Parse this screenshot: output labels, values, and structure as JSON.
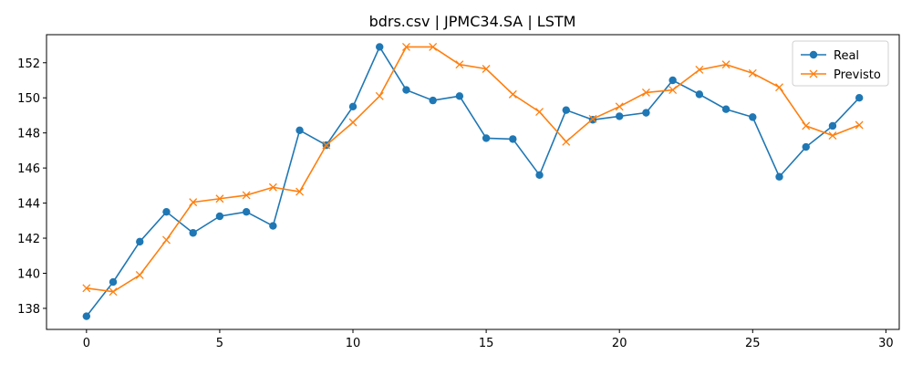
{
  "chart_data": {
    "type": "line",
    "title": "bdrs.csv | JPMC34.SA | LSTM",
    "xlabel": "",
    "ylabel": "",
    "xlim": [
      -1.5,
      30.5
    ],
    "ylim": [
      136.8,
      153.6
    ],
    "xticks": [
      0,
      5,
      10,
      15,
      20,
      25,
      30
    ],
    "yticks": [
      138,
      140,
      142,
      144,
      146,
      148,
      150,
      152
    ],
    "grid": false,
    "legend_position": "top-right",
    "x": [
      0,
      1,
      2,
      3,
      4,
      5,
      6,
      7,
      8,
      9,
      10,
      11,
      12,
      13,
      14,
      15,
      16,
      17,
      18,
      19,
      20,
      21,
      22,
      23,
      24,
      25,
      26,
      27,
      28,
      29
    ],
    "series": [
      {
        "name": "Real",
        "color": "#1f77b4",
        "marker": "circle",
        "values": [
          137.55,
          139.5,
          141.8,
          143.5,
          142.3,
          143.25,
          143.5,
          142.7,
          148.15,
          147.3,
          149.5,
          152.9,
          150.45,
          149.85,
          150.1,
          147.7,
          147.65,
          145.6,
          149.3,
          148.75,
          148.95,
          149.15,
          151.0,
          150.2,
          149.35,
          148.9,
          145.5,
          147.2,
          148.4,
          150.0
        ]
      },
      {
        "name": "Previsto",
        "color": "#ff7f0e",
        "marker": "x",
        "values": [
          139.15,
          138.95,
          139.9,
          141.9,
          144.05,
          144.25,
          144.45,
          144.9,
          144.65,
          147.3,
          148.6,
          150.1,
          152.9,
          152.9,
          151.9,
          151.65,
          150.2,
          149.2,
          147.5,
          148.8,
          149.5,
          150.3,
          150.45,
          151.6,
          151.9,
          151.4,
          150.6,
          148.4,
          147.85,
          148.45
        ]
      }
    ]
  }
}
